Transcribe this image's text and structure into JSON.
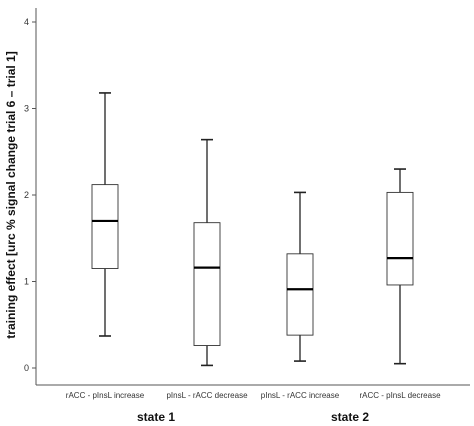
{
  "chart_data": {
    "type": "boxplot",
    "title": "",
    "ylabel": "training effect [urc % signal change trial 6 – trial 1]",
    "xlabel": "",
    "ylim": [
      0,
      4
    ],
    "yticks": [
      0,
      1,
      2,
      3,
      4
    ],
    "grid": false,
    "categories": [
      "rACC - pInsL increase",
      "pInsL - rACC decrease",
      "pInsL - rACC increase",
      "rACC - pInsL decrease"
    ],
    "boxes": [
      {
        "min": 0.37,
        "q1": 1.15,
        "median": 1.7,
        "q3": 2.12,
        "max": 3.18
      },
      {
        "min": 0.03,
        "q1": 0.26,
        "median": 1.16,
        "q3": 1.68,
        "max": 2.64
      },
      {
        "min": 0.08,
        "q1": 0.38,
        "median": 0.91,
        "q3": 1.32,
        "max": 2.03
      },
      {
        "min": 0.05,
        "q1": 0.96,
        "median": 1.27,
        "q3": 2.03,
        "max": 2.3
      }
    ],
    "groups": [
      {
        "label": "state 1",
        "categories": [
          0,
          1
        ]
      },
      {
        "label": "state 2",
        "categories": [
          2,
          3
        ]
      }
    ]
  }
}
